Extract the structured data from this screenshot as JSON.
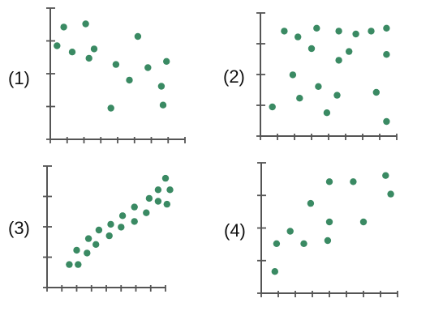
{
  "figure": {
    "background": "#ffffff",
    "axis_color": "#555555",
    "point_color": "#3a8a63"
  },
  "chart_data": [
    {
      "type": "scatter",
      "label": "(1)",
      "title": "",
      "xlabel": "",
      "ylabel": "",
      "xlim": [
        0,
        8
      ],
      "ylim": [
        0,
        4
      ],
      "x_ticks": 8,
      "y_ticks": 4,
      "grid": false,
      "series": [
        {
          "points": [
            [
              0.4,
              3.0
            ],
            [
              0.8,
              3.6
            ],
            [
              1.3,
              2.8
            ],
            [
              2.1,
              3.7
            ],
            [
              2.3,
              2.6
            ],
            [
              2.6,
              2.9
            ],
            [
              3.6,
              1.0
            ],
            [
              3.9,
              2.4
            ],
            [
              4.7,
              1.9
            ],
            [
              5.2,
              3.3
            ],
            [
              5.8,
              2.3
            ],
            [
              6.6,
              1.7
            ],
            [
              6.9,
              2.5
            ],
            [
              6.7,
              1.1
            ]
          ]
        }
      ]
    },
    {
      "type": "scatter",
      "label": "(2)",
      "title": "",
      "xlabel": "",
      "ylabel": "",
      "xlim": [
        0,
        8
      ],
      "ylim": [
        0,
        4
      ],
      "x_ticks": 8,
      "y_ticks": 4,
      "grid": false,
      "series": [
        {
          "points": [
            [
              0.7,
              1.0
            ],
            [
              1.4,
              3.6
            ],
            [
              1.9,
              2.1
            ],
            [
              2.2,
              3.4
            ],
            [
              2.3,
              1.3
            ],
            [
              3.0,
              3.0
            ],
            [
              3.3,
              3.7
            ],
            [
              3.4,
              1.7
            ],
            [
              3.9,
              0.8
            ],
            [
              4.5,
              1.4
            ],
            [
              4.6,
              3.6
            ],
            [
              4.6,
              2.6
            ],
            [
              5.2,
              2.9
            ],
            [
              5.6,
              3.5
            ],
            [
              6.5,
              3.6
            ],
            [
              6.8,
              1.5
            ],
            [
              7.4,
              3.7
            ],
            [
              7.4,
              2.8
            ],
            [
              7.4,
              0.5
            ]
          ]
        }
      ]
    },
    {
      "type": "scatter",
      "label": "(3)",
      "title": "",
      "xlabel": "",
      "ylabel": "",
      "xlim": [
        0,
        8
      ],
      "ylim": [
        0,
        4
      ],
      "x_ticks": 8,
      "y_ticks": 4,
      "grid": false,
      "series": [
        {
          "points": [
            [
              1.5,
              0.8
            ],
            [
              2.0,
              1.3
            ],
            [
              2.1,
              0.8
            ],
            [
              2.7,
              1.2
            ],
            [
              2.8,
              1.7
            ],
            [
              3.3,
              1.5
            ],
            [
              3.5,
              2.0
            ],
            [
              4.2,
              1.8
            ],
            [
              4.3,
              2.2
            ],
            [
              5.0,
              2.1
            ],
            [
              5.1,
              2.5
            ],
            [
              5.9,
              2.3
            ],
            [
              5.9,
              2.8
            ],
            [
              6.7,
              2.6
            ],
            [
              6.9,
              3.1
            ],
            [
              7.5,
              3.0
            ],
            [
              7.5,
              3.4
            ],
            [
              8.0,
              3.8
            ],
            [
              8.3,
              3.4
            ],
            [
              8.1,
              2.9
            ]
          ]
        }
      ]
    },
    {
      "type": "scatter",
      "label": "(4)",
      "title": "",
      "xlabel": "",
      "ylabel": "",
      "xlim": [
        0,
        8
      ],
      "ylim": [
        0,
        4
      ],
      "x_ticks": 8,
      "y_ticks": 4,
      "grid": false,
      "series": [
        {
          "points": [
            [
              0.8,
              0.7
            ],
            [
              0.9,
              1.6
            ],
            [
              1.7,
              2.0
            ],
            [
              2.5,
              1.6
            ],
            [
              2.9,
              2.9
            ],
            [
              3.9,
              1.7
            ],
            [
              4.0,
              3.6
            ],
            [
              4.0,
              2.3
            ],
            [
              5.4,
              3.6
            ],
            [
              6.0,
              2.3
            ],
            [
              7.3,
              3.8
            ],
            [
              7.6,
              3.2
            ]
          ]
        }
      ]
    }
  ]
}
